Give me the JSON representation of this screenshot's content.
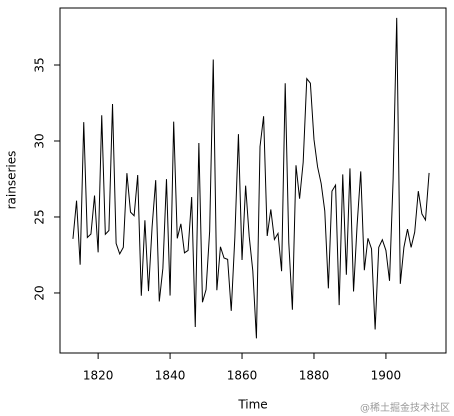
{
  "chart_data": {
    "type": "line",
    "x_label": "Time",
    "y_label": "rainseries",
    "x": [
      1813,
      1814,
      1815,
      1816,
      1817,
      1818,
      1819,
      1820,
      1821,
      1822,
      1823,
      1824,
      1825,
      1826,
      1827,
      1828,
      1829,
      1830,
      1831,
      1832,
      1833,
      1834,
      1835,
      1836,
      1837,
      1838,
      1839,
      1840,
      1841,
      1842,
      1843,
      1844,
      1845,
      1846,
      1847,
      1848,
      1849,
      1850,
      1851,
      1852,
      1853,
      1854,
      1855,
      1856,
      1857,
      1858,
      1859,
      1860,
      1861,
      1862,
      1863,
      1864,
      1865,
      1866,
      1867,
      1868,
      1869,
      1870,
      1871,
      1872,
      1873,
      1874,
      1875,
      1876,
      1877,
      1878,
      1879,
      1880,
      1881,
      1882,
      1883,
      1884,
      1885,
      1886,
      1887,
      1888,
      1889,
      1890,
      1891,
      1892,
      1893,
      1894,
      1895,
      1896,
      1897,
      1898,
      1899,
      1900,
      1901,
      1902,
      1903,
      1904,
      1905,
      1906,
      1907,
      1908,
      1909,
      1910,
      1911,
      1912
    ],
    "values": [
      23.56,
      26.07,
      21.86,
      31.24,
      23.65,
      23.88,
      26.41,
      22.67,
      31.69,
      23.86,
      24.11,
      32.43,
      23.26,
      22.57,
      23.0,
      27.88,
      25.32,
      25.08,
      27.76,
      19.82,
      24.78,
      20.12,
      24.34,
      27.42,
      19.44,
      21.63,
      27.49,
      19.83,
      31.27,
      23.59,
      24.55,
      22.64,
      22.8,
      26.31,
      17.76,
      29.87,
      19.39,
      20.22,
      24.06,
      35.36,
      20.18,
      23.04,
      22.3,
      22.21,
      18.82,
      23.63,
      30.45,
      22.17,
      27.06,
      23.71,
      21.44,
      17.01,
      29.63,
      31.63,
      23.75,
      25.5,
      23.52,
      23.92,
      21.43,
      33.8,
      23.3,
      18.9,
      28.4,
      26.2,
      28.6,
      34.1,
      33.8,
      30.1,
      28.3,
      27.2,
      25.4,
      20.3,
      26.7,
      27.1,
      19.2,
      27.8,
      21.2,
      28.2,
      20.1,
      24.5,
      28.0,
      21.5,
      23.6,
      22.9,
      17.6,
      23.0,
      23.5,
      22.8,
      20.8,
      27.5,
      38.1,
      20.6,
      23.0,
      24.2,
      23.0,
      24.0,
      26.7,
      25.2,
      24.8,
      27.9
    ],
    "color": "#000000",
    "xlim": [
      1809.4,
      1916.7
    ],
    "ylim": [
      16.05,
      38.75
    ],
    "xticks": [
      1820,
      1840,
      1860,
      1880,
      1900
    ],
    "yticks": [
      20,
      25,
      30,
      35
    ]
  },
  "watermark": "@稀土掘金技术社区"
}
